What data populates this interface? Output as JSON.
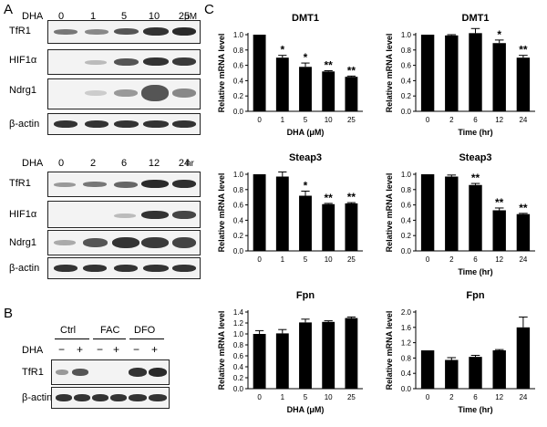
{
  "panels": {
    "a": "A",
    "b": "B",
    "c": "C"
  },
  "panel_a_top": {
    "treatment_label": "DHA",
    "doses": [
      "0",
      "1",
      "5",
      "10",
      "25"
    ],
    "unit": "μM",
    "proteins": [
      "TfR1",
      "HIF1α",
      "Ndrg1",
      "β-actin"
    ]
  },
  "panel_a_bottom": {
    "treatment_label": "DHA",
    "times": [
      "0",
      "2",
      "6",
      "12",
      "24"
    ],
    "unit": "hr",
    "proteins": [
      "TfR1",
      "HIF1α",
      "Ndrg1",
      "β-actin"
    ]
  },
  "panel_b": {
    "groups": [
      "Ctrl",
      "FAC",
      "DFO"
    ],
    "treatment_label": "DHA",
    "signs": [
      "−",
      "+",
      "−",
      "+",
      "−",
      "+"
    ],
    "proteins": [
      "TfR1",
      "β-actin"
    ]
  },
  "chart_data": [
    {
      "type": "bar",
      "title": "DMT1",
      "xlabel": "DHA (μM)",
      "ylabel": "Relative mRNA level",
      "categories": [
        "0",
        "1",
        "5",
        "10",
        "25"
      ],
      "values": [
        1.0,
        0.7,
        0.58,
        0.52,
        0.45
      ],
      "errors": [
        0,
        0.03,
        0.05,
        0.01,
        0.01
      ],
      "significance": [
        "",
        "*",
        "*",
        "**",
        "**"
      ],
      "ylim": [
        0,
        1.0
      ],
      "yticks": [
        "0.0",
        "0.2",
        "0.4",
        "0.6",
        "0.8",
        "1.0"
      ]
    },
    {
      "type": "bar",
      "title": "DMT1",
      "xlabel": "Time (hr)",
      "ylabel": "Relative mRNA level",
      "categories": [
        "0",
        "2",
        "6",
        "12",
        "24"
      ],
      "values": [
        1.0,
        0.99,
        1.02,
        0.89,
        0.7
      ],
      "errors": [
        0,
        0.01,
        0.06,
        0.04,
        0.03
      ],
      "significance": [
        "",
        "",
        "",
        "*",
        "**"
      ],
      "ylim": [
        0,
        1.0
      ],
      "yticks": [
        "0.0",
        "0.2",
        "0.4",
        "0.6",
        "0.8",
        "1.0"
      ]
    },
    {
      "type": "bar",
      "title": "Steap3",
      "xlabel": "",
      "ylabel": "Relative mRNA level",
      "categories": [
        "0",
        "1",
        "5",
        "10",
        "25"
      ],
      "values": [
        1.0,
        0.97,
        0.72,
        0.61,
        0.62
      ],
      "errors": [
        0,
        0.06,
        0.06,
        0.01,
        0.01
      ],
      "significance": [
        "",
        "",
        "*",
        "**",
        "**"
      ],
      "ylim": [
        0,
        1.0
      ],
      "yticks": [
        "0.0",
        "0.2",
        "0.4",
        "0.6",
        "0.8",
        "1.0"
      ]
    },
    {
      "type": "bar",
      "title": "Steap3",
      "xlabel": "Time (hr)",
      "ylabel": "Relative mRNA level",
      "categories": [
        "0",
        "2",
        "6",
        "12",
        "24"
      ],
      "values": [
        1.0,
        0.97,
        0.86,
        0.53,
        0.48
      ],
      "errors": [
        0,
        0.02,
        0.02,
        0.03,
        0.01
      ],
      "significance": [
        "",
        "",
        "**",
        "**",
        "**"
      ],
      "ylim": [
        0,
        1.0
      ],
      "yticks": [
        "0.0",
        "0.2",
        "0.4",
        "0.6",
        "0.8",
        "1.0"
      ]
    },
    {
      "type": "bar",
      "title": "Fpn",
      "xlabel": "DHA (μM)",
      "ylabel": "Relative mRNA level",
      "categories": [
        "0",
        "1",
        "5",
        "10",
        "25"
      ],
      "values": [
        1.0,
        1.01,
        1.21,
        1.22,
        1.29
      ],
      "errors": [
        0.06,
        0.07,
        0.06,
        0.02,
        0.02
      ],
      "significance": [
        "",
        "",
        "",
        "",
        ""
      ],
      "ylim": [
        0,
        1.4
      ],
      "yticks": [
        "0.0",
        "0.2",
        "0.4",
        "0.6",
        "0.8",
        "1.0",
        "1.2",
        "1.4"
      ]
    },
    {
      "type": "bar",
      "title": "Fpn",
      "xlabel": "Time (hr)",
      "ylabel": "Relative mRNA level",
      "categories": [
        "0",
        "2",
        "6",
        "12",
        "24"
      ],
      "values": [
        1.0,
        0.75,
        0.83,
        1.0,
        1.6
      ],
      "errors": [
        0,
        0.06,
        0.04,
        0.02,
        0.27
      ],
      "significance": [
        "",
        "",
        "",
        "",
        ""
      ],
      "ylim": [
        0,
        2.0
      ],
      "yticks": [
        "0.0",
        "0.4",
        "0.8",
        "1.2",
        "1.6",
        "2.0"
      ]
    }
  ]
}
